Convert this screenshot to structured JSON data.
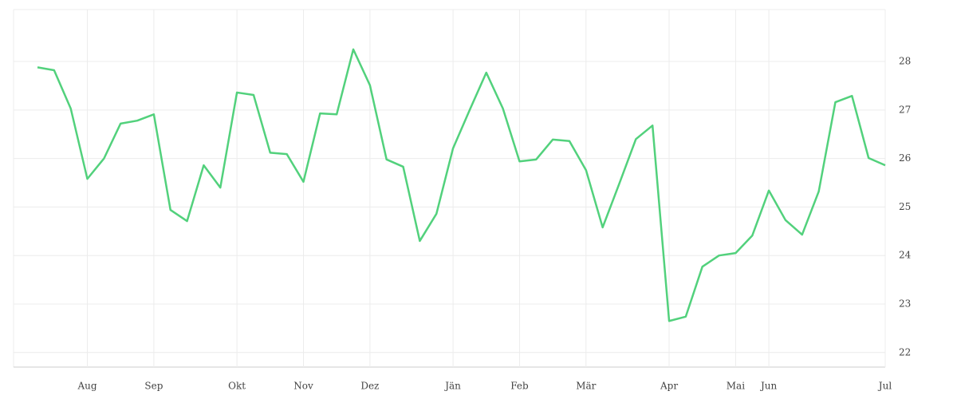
{
  "chart_data": {
    "type": "line",
    "categories": [
      null,
      null,
      null,
      "Aug",
      null,
      null,
      null,
      "Sep",
      null,
      null,
      null,
      null,
      "Okt",
      null,
      null,
      null,
      "Nov",
      null,
      null,
      null,
      "Dez",
      null,
      null,
      null,
      null,
      "Jän",
      null,
      null,
      null,
      "Feb",
      null,
      null,
      null,
      "Mär",
      null,
      null,
      null,
      null,
      "Apr",
      null,
      null,
      null,
      "Mai",
      null,
      "Jun",
      null,
      null,
      null,
      null,
      null,
      null,
      "Jul"
    ],
    "series": [
      {
        "color": "#52d17c",
        "values": [
          27.88,
          27.82,
          27.03,
          25.58,
          26.0,
          26.72,
          26.78,
          26.91,
          24.94,
          24.71,
          25.86,
          25.4,
          27.36,
          27.31,
          26.12,
          26.09,
          25.52,
          26.93,
          26.91,
          28.25,
          27.51,
          25.98,
          25.83,
          24.3,
          24.86,
          26.21,
          27.0,
          27.77,
          27.03,
          25.94,
          25.98,
          26.39,
          26.36,
          25.76,
          24.58,
          25.48,
          26.4,
          26.68,
          22.65,
          22.74,
          23.77,
          24.0,
          24.05,
          24.41,
          25.34,
          24.73,
          24.43,
          25.32,
          27.16,
          27.29,
          26.01,
          25.86
        ]
      }
    ],
    "ylim": [
      21.7,
      29.07
    ],
    "yticks": [
      22,
      23,
      24,
      25,
      26,
      27,
      28
    ],
    "grid": true
  }
}
